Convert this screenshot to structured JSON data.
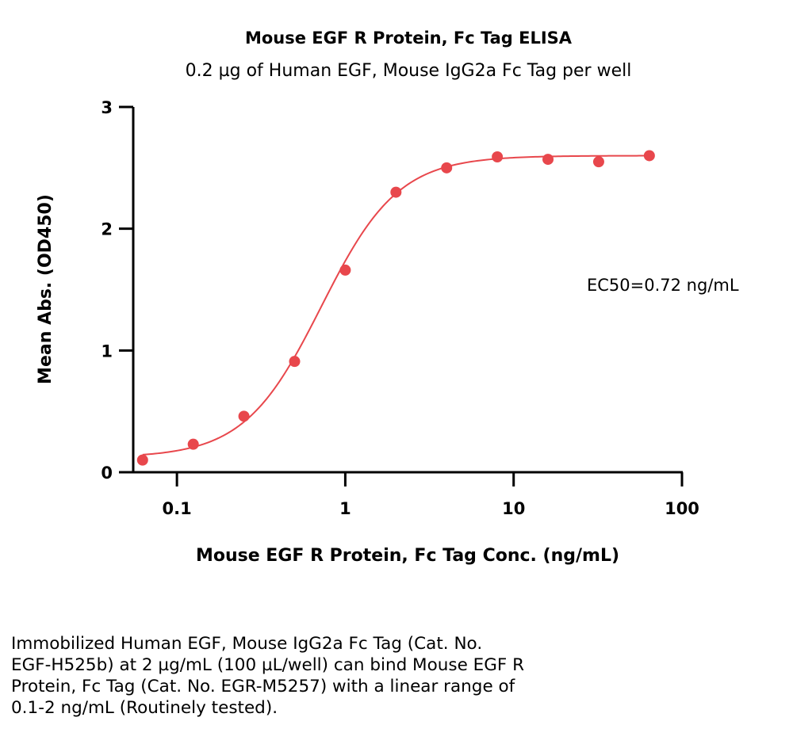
{
  "chart_data": {
    "type": "scatter",
    "title": "Mouse EGF R Protein, Fc Tag ELISA",
    "subtitle": "0.2 µg of Human EGF, Mouse IgG2a Fc Tag per well",
    "xlabel": "Mouse EGF R Protein, Fc Tag Conc. (ng/mL)",
    "ylabel": "Mean Abs. (OD450)",
    "x_scale": "log",
    "xlim": [
      0.055,
      100
    ],
    "ylim": [
      0,
      3
    ],
    "x_ticks": [
      0.1,
      1,
      10,
      100
    ],
    "x_tick_labels": [
      "0.1",
      "1",
      "10",
      "100"
    ],
    "y_ticks": [
      0,
      1,
      2,
      3
    ],
    "y_tick_labels": [
      "0",
      "1",
      "2",
      "3"
    ],
    "grid": false,
    "legend": false,
    "color": "#e8474c",
    "series": [
      {
        "x": [
          0.0625,
          0.125,
          0.25,
          0.5,
          1,
          2,
          4,
          8,
          16,
          32,
          64
        ],
        "y": [
          0.1,
          0.23,
          0.46,
          0.91,
          1.66,
          2.3,
          2.5,
          2.59,
          2.57,
          2.55,
          2.6
        ]
      }
    ],
    "fit": {
      "model": "4PL",
      "bottom": 0.12,
      "top": 2.6,
      "ec50": 0.72,
      "hill": 1.9
    },
    "annotation": "EC50=0.72 ng/mL"
  },
  "caption": "Immobilized Human EGF, Mouse IgG2a Fc Tag (Cat. No.\nEGF-H525b) at 2 µg/mL (100 µL/well) can bind Mouse EGF R\nProtein, Fc Tag (Cat. No. EGR-M5257) with a linear range of\n0.1-2 ng/mL (Routinely tested)."
}
